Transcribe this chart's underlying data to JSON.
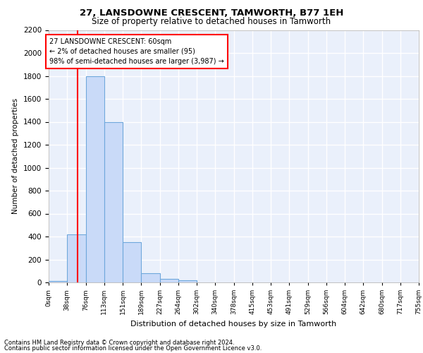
{
  "title": "27, LANSDOWNE CRESCENT, TAMWORTH, B77 1EH",
  "subtitle": "Size of property relative to detached houses in Tamworth",
  "xlabel": "Distribution of detached houses by size in Tamworth",
  "ylabel": "Number of detached properties",
  "bar_color": "#c9daf8",
  "bar_edge_color": "#6fa8dc",
  "background_color": "#eaf0fb",
  "grid_color": "#ffffff",
  "bins": [
    "0sqm",
    "38sqm",
    "76sqm",
    "113sqm",
    "151sqm",
    "189sqm",
    "227sqm",
    "264sqm",
    "302sqm",
    "340sqm",
    "378sqm",
    "415sqm",
    "453sqm",
    "491sqm",
    "529sqm",
    "566sqm",
    "604sqm",
    "642sqm",
    "680sqm",
    "717sqm",
    "755sqm"
  ],
  "values": [
    15,
    420,
    1800,
    1400,
    350,
    80,
    30,
    18,
    0,
    0,
    0,
    0,
    0,
    0,
    0,
    0,
    0,
    0,
    0,
    0
  ],
  "ylim": [
    0,
    2200
  ],
  "yticks": [
    0,
    200,
    400,
    600,
    800,
    1000,
    1200,
    1400,
    1600,
    1800,
    2000,
    2200
  ],
  "annotation_title": "27 LANSDOWNE CRESCENT: 60sqm",
  "annotation_line1": "← 2% of detached houses are smaller (95)",
  "annotation_line2": "98% of semi-detached houses are larger (3,987) →",
  "footer1": "Contains HM Land Registry data © Crown copyright and database right 2024.",
  "footer2": "Contains public sector information licensed under the Open Government Licence v3.0."
}
